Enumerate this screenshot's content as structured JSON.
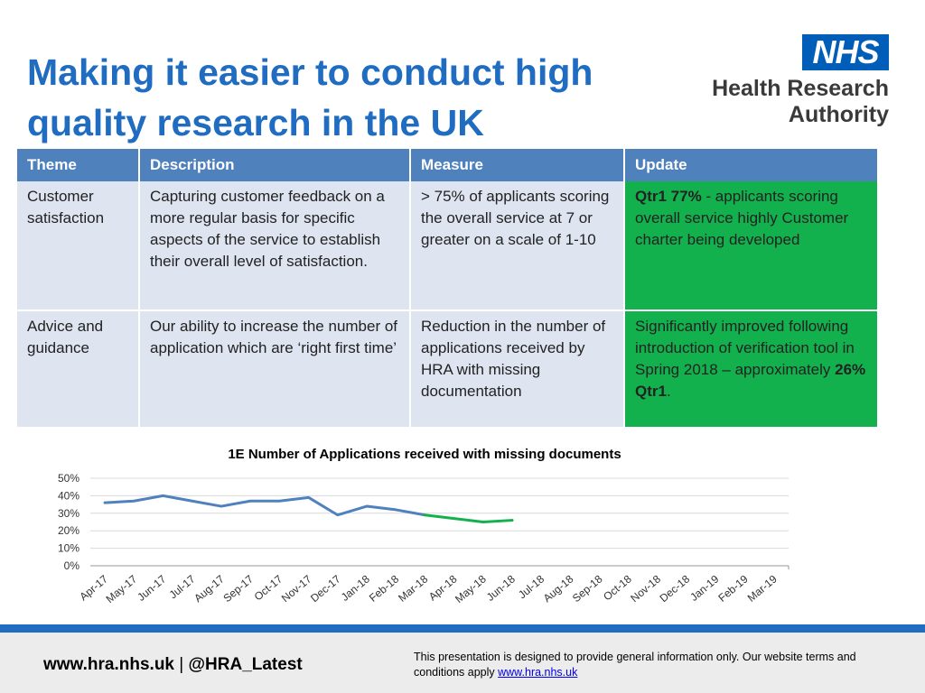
{
  "title": "Making it easier to conduct high quality research in the UK",
  "logo": {
    "nhs": "NHS",
    "line1": "Health Research",
    "line2": "Authority"
  },
  "table": {
    "headers": [
      "Theme",
      "Description",
      "Measure",
      "Update"
    ],
    "rows": [
      {
        "theme": "Customer satisfaction",
        "description": "Capturing customer feedback on a more regular basis for specific aspects of the service to establish their overall level of satisfaction.",
        "measure": "> 75% of applicants scoring the overall service at 7 or greater on a scale of 1-10",
        "update_bold": "Qtr1 77%",
        "update_text": " - applicants scoring overall service highly Customer charter being developed"
      },
      {
        "theme": "Advice and guidance",
        "description": "Our ability to increase the number of application which are ‘right first time’",
        "measure": "Reduction in the number of applications received by HRA with missing documentation",
        "update_text": "Significantly improved following introduction of verification tool in Spring 2018 – approximately ",
        "update_bold": "26% Qtr1",
        "update_end": "."
      }
    ]
  },
  "chart_data": {
    "type": "line",
    "title": "1E Number of Applications received with missing documents",
    "categories": [
      "Apr-17",
      "May-17",
      "Jun-17",
      "Jul-17",
      "Aug-17",
      "Sep-17",
      "Oct-17",
      "Nov-17",
      "Dec-17",
      "Jan-18",
      "Feb-18",
      "Mar-18",
      "Apr-18",
      "May-18",
      "Jun-18",
      "Jul-18",
      "Aug-18",
      "Sep-18",
      "Oct-18",
      "Nov-18",
      "Dec-18",
      "Jan-19",
      "Feb-19",
      "Mar-19"
    ],
    "series": [
      {
        "color": "#4f81bd",
        "values": [
          36,
          37,
          40,
          37,
          34,
          37,
          37,
          39,
          29,
          34,
          32,
          29,
          null,
          null,
          null,
          null,
          null,
          null,
          null,
          null,
          null,
          null,
          null,
          null
        ]
      },
      {
        "color": "#13b14d",
        "values": [
          null,
          null,
          null,
          null,
          null,
          null,
          null,
          null,
          null,
          null,
          null,
          29,
          27,
          25,
          26,
          null,
          null,
          null,
          null,
          null,
          null,
          null,
          null,
          null
        ]
      }
    ],
    "yticks": [
      "0%",
      "10%",
      "20%",
      "30%",
      "40%",
      "50%"
    ],
    "ylim": [
      0,
      50
    ],
    "grid": true
  },
  "footer": {
    "website": "www.hra.nhs.uk",
    "separator": " | ",
    "twitter": "@HRA_Latest",
    "disclaimer": "This presentation is designed to provide general information only. Our website terms and conditions apply ",
    "link": "www.hra.nhs.uk"
  }
}
